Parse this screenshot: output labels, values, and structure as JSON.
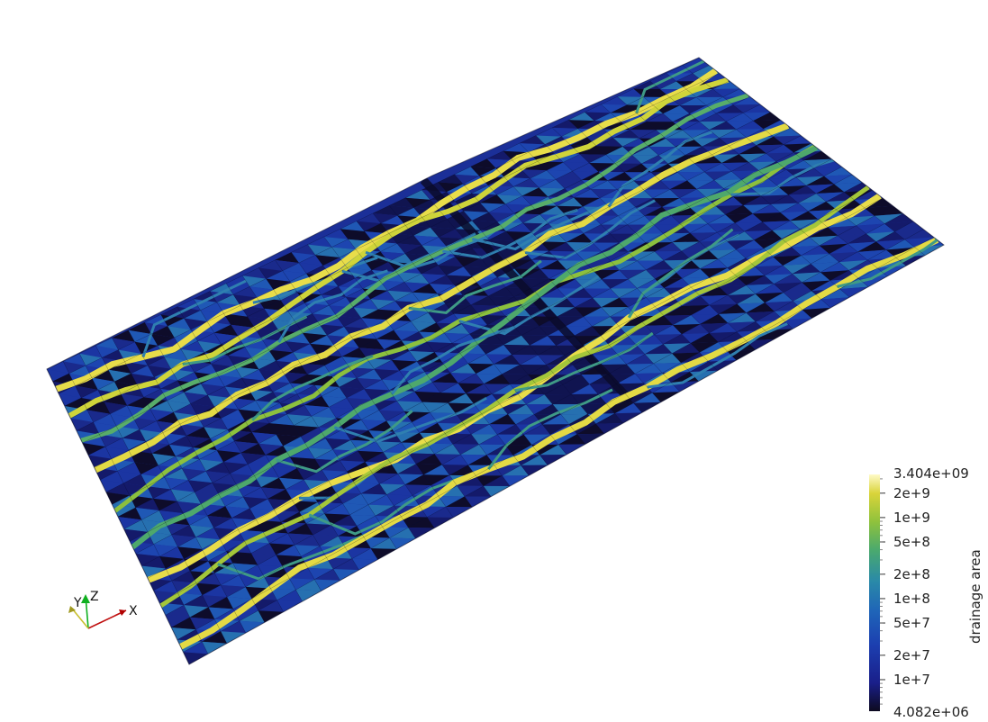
{
  "scene": {
    "background": "#ffffff",
    "colormap": [
      "#0d0a1f",
      "#1a1f8a",
      "#1c3fb0",
      "#1f64b8",
      "#2a8aa8",
      "#4aa96e",
      "#8fc23c",
      "#d9d43a",
      "#fffac8"
    ]
  },
  "colorbar": {
    "title": "drainage area",
    "scale": "log",
    "min_label": "4.082e+06",
    "max_label": "3.404e+09",
    "ticks": [
      {
        "label": "2e+9",
        "value": 2000000000
      },
      {
        "label": "1e+9",
        "value": 1000000000
      },
      {
        "label": "5e+8",
        "value": 500000000
      },
      {
        "label": "2e+8",
        "value": 200000000
      },
      {
        "label": "1e+8",
        "value": 100000000
      },
      {
        "label": "5e+7",
        "value": 50000000
      },
      {
        "label": "2e+7",
        "value": 20000000
      },
      {
        "label": "1e+7",
        "value": 10000000
      }
    ],
    "min_value": 4082000,
    "max_value": 3404000000
  },
  "orientation_axes": {
    "x_label": "X",
    "y_label": "Y",
    "z_label": "Z",
    "x_color": "#c01010",
    "y_color": "#c8c030",
    "z_color": "#10b020"
  }
}
